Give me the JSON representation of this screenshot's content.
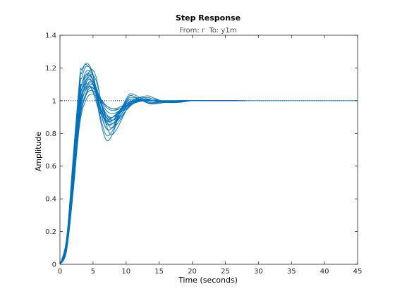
{
  "chart_data": {
    "type": "line",
    "title": "Step Response",
    "subtitle": "From: r  To: y1m",
    "xlabel": "Time (seconds)",
    "ylabel": "Amplitude",
    "xlim": [
      0,
      45
    ],
    "ylim": [
      0,
      1.4
    ],
    "xticks": [
      "0",
      "5",
      "10",
      "15",
      "20",
      "25",
      "30",
      "35",
      "40",
      "45"
    ],
    "yticks": [
      "0",
      "0.2",
      "0.4",
      "0.6",
      "0.8",
      "1",
      "1.2",
      "1.4"
    ],
    "xtick_values": [
      0,
      5,
      10,
      15,
      20,
      25,
      30,
      35,
      40,
      45
    ],
    "ytick_values": [
      0,
      0.2,
      0.4,
      0.6,
      0.8,
      1,
      1.2,
      1.4
    ],
    "reference_line": {
      "y": 1,
      "style": "dotted",
      "color": "#000000"
    },
    "grid": false,
    "legend": "none",
    "series_color": "#0072bd",
    "series": [
      {
        "x": [
          0,
          1,
          2,
          3,
          3.3,
          4,
          5,
          6,
          7,
          8,
          9,
          10.3,
          11,
          12,
          13,
          14,
          16,
          18,
          20,
          22,
          24,
          25
        ],
        "y": [
          0,
          0.1,
          0.52,
          1.0,
          1.07,
          1.15,
          1.13,
          1.0,
          0.9,
          0.88,
          0.93,
          0.99,
          1.0,
          1.0,
          0.995,
          0.99,
          0.995,
          1.0,
          1.0,
          1.0,
          1.0,
          1.0
        ]
      },
      {
        "x": [
          0,
          1,
          2,
          3,
          3.3,
          4,
          5,
          6,
          7,
          8,
          9,
          10.3,
          11,
          12,
          13,
          14,
          16,
          18,
          20,
          22,
          24,
          25
        ],
        "y": [
          0,
          0.12,
          0.56,
          1.05,
          1.1,
          1.18,
          1.15,
          0.98,
          0.87,
          0.86,
          0.92,
          1.0,
          1.01,
          1.005,
          0.995,
          0.99,
          0.995,
          1.0,
          1.0,
          1.0,
          1.0,
          1.0
        ]
      },
      {
        "x": [
          0,
          1,
          2,
          3,
          3.3,
          4,
          5,
          6,
          7,
          8,
          9,
          10.3,
          11,
          12,
          13,
          14,
          16,
          18,
          20,
          22,
          24,
          25
        ],
        "y": [
          0,
          0.14,
          0.6,
          1.08,
          1.14,
          1.21,
          1.16,
          0.95,
          0.83,
          0.84,
          0.92,
          1.01,
          1.02,
          1.01,
          0.99,
          0.985,
          0.995,
          1.0,
          1.0,
          1.0,
          1.0,
          1.0
        ]
      },
      {
        "x": [
          0,
          1,
          2,
          3,
          3.3,
          4,
          5,
          6,
          7,
          8,
          9,
          10.3,
          11,
          12,
          13,
          14,
          16,
          18,
          20,
          22,
          24,
          25
        ],
        "y": [
          0,
          0.15,
          0.63,
          1.12,
          1.17,
          1.23,
          1.16,
          0.92,
          0.79,
          0.82,
          0.92,
          1.02,
          1.03,
          1.01,
          0.99,
          0.98,
          0.99,
          1.0,
          1.0,
          1.0,
          1.0,
          1.0
        ]
      },
      {
        "x": [
          0,
          1,
          2,
          3,
          3.3,
          4,
          5,
          6,
          7,
          8,
          9,
          10.3,
          11,
          12,
          13,
          14,
          16,
          18,
          20,
          22,
          24,
          25
        ],
        "y": [
          0,
          0.16,
          0.66,
          1.15,
          1.19,
          1.22,
          1.15,
          0.9,
          0.76,
          0.8,
          0.92,
          1.03,
          1.04,
          1.02,
          0.99,
          0.98,
          0.99,
          1.0,
          1.0,
          1.0,
          1.0,
          1.0
        ]
      },
      {
        "x": [
          0,
          1,
          2,
          3,
          4,
          4.7,
          5.5,
          6.5,
          7.5,
          8.5,
          10,
          11,
          12,
          13.3,
          14,
          16,
          18,
          20,
          22,
          24,
          26,
          27
        ],
        "y": [
          0,
          0.08,
          0.44,
          0.88,
          1.04,
          1.08,
          1.05,
          0.95,
          0.9,
          0.91,
          0.96,
          0.98,
          0.995,
          1.0,
          1.0,
          0.995,
          0.995,
          1.0,
          1.0,
          1.0,
          1.0,
          1.0
        ]
      },
      {
        "x": [
          0,
          1,
          2,
          3,
          4,
          4.7,
          5.5,
          6.5,
          7.5,
          8.5,
          10,
          11,
          12,
          13.3,
          14,
          16,
          18,
          20,
          22,
          24,
          26,
          27
        ],
        "y": [
          0,
          0.09,
          0.47,
          0.92,
          1.08,
          1.12,
          1.08,
          0.95,
          0.87,
          0.87,
          0.94,
          0.98,
          1.0,
          1.01,
          1.01,
          0.995,
          0.99,
          1.0,
          1.0,
          1.0,
          1.0,
          1.0
        ]
      },
      {
        "x": [
          0,
          1,
          2,
          3,
          4,
          4.7,
          5.5,
          6.5,
          7.5,
          8.5,
          10,
          11,
          12,
          13.3,
          14,
          16,
          18,
          20,
          22,
          24,
          26,
          27
        ],
        "y": [
          0,
          0.1,
          0.5,
          0.95,
          1.11,
          1.16,
          1.12,
          0.95,
          0.84,
          0.85,
          0.94,
          0.99,
          1.01,
          1.02,
          1.01,
          0.99,
          0.99,
          1.0,
          1.0,
          1.0,
          1.0,
          1.0
        ]
      },
      {
        "x": [
          0,
          1,
          2,
          3,
          4,
          4.7,
          5.5,
          6.5,
          7.5,
          8.5,
          10,
          11,
          12,
          13.3,
          14,
          16,
          18,
          20,
          22,
          24,
          26,
          27
        ],
        "y": [
          0,
          0.11,
          0.53,
          0.98,
          1.13,
          1.19,
          1.14,
          0.93,
          0.8,
          0.82,
          0.94,
          1.0,
          1.02,
          1.03,
          1.02,
          0.99,
          0.99,
          1.0,
          1.0,
          1.0,
          1.0,
          1.0
        ]
      },
      {
        "x": [
          0,
          1,
          2,
          3,
          3.6,
          4.3,
          5,
          6,
          7,
          8,
          9.5,
          10.5,
          11.5,
          12.5,
          14,
          16,
          18,
          20,
          22,
          24,
          26,
          27
        ],
        "y": [
          0,
          0.12,
          0.55,
          1.0,
          1.1,
          1.14,
          1.1,
          0.96,
          0.86,
          0.86,
          0.93,
          0.98,
          1.0,
          1.01,
          1.0,
          0.99,
          0.995,
          1.0,
          1.0,
          1.0,
          1.0,
          1.0
        ]
      },
      {
        "x": [
          0,
          1,
          2,
          3,
          3.6,
          4.3,
          5,
          6,
          7,
          8,
          9.5,
          10.5,
          11.5,
          12.5,
          14,
          16,
          18,
          20,
          22,
          24,
          26,
          27
        ],
        "y": [
          0,
          0.13,
          0.58,
          1.03,
          1.13,
          1.17,
          1.12,
          0.95,
          0.83,
          0.84,
          0.93,
          0.99,
          1.01,
          1.02,
          1.0,
          0.99,
          0.995,
          1.0,
          1.0,
          1.0,
          1.0,
          1.0
        ]
      },
      {
        "x": [
          0,
          1,
          2,
          3,
          3.6,
          4.3,
          5,
          6,
          7,
          8,
          9.5,
          10.5,
          11.5,
          12.5,
          14,
          16,
          18,
          20,
          22,
          24,
          26,
          27
        ],
        "y": [
          0,
          0.13,
          0.57,
          1.01,
          1.09,
          1.1,
          1.05,
          0.93,
          0.88,
          0.9,
          0.96,
          0.99,
          1.0,
          1.0,
          1.0,
          0.995,
          1.0,
          1.0,
          1.0,
          1.0,
          1.0,
          1.0
        ]
      },
      {
        "x": [
          0,
          1,
          2,
          3,
          3.6,
          4.3,
          5,
          6,
          7,
          8,
          9.5,
          10.5,
          11.5,
          12.5,
          14,
          16,
          18,
          20,
          22,
          24,
          26,
          27
        ],
        "y": [
          0,
          0.12,
          0.54,
          0.97,
          1.06,
          1.09,
          1.06,
          0.96,
          0.9,
          0.9,
          0.95,
          0.98,
          0.995,
          1.0,
          1.0,
          0.995,
          1.0,
          1.0,
          1.0,
          1.0,
          1.0,
          1.0
        ]
      },
      {
        "x": [
          0,
          1,
          2,
          3,
          3.6,
          4.3,
          5,
          6,
          7,
          8,
          9.5,
          10.5,
          11.5,
          12.5,
          14,
          16,
          18,
          20,
          22,
          24,
          26,
          27
        ],
        "y": [
          0,
          0.11,
          0.52,
          0.96,
          1.07,
          1.13,
          1.1,
          0.97,
          0.88,
          0.88,
          0.94,
          0.98,
          1.0,
          1.005,
          1.0,
          0.99,
          0.995,
          1.0,
          1.0,
          1.0,
          1.0,
          1.0
        ]
      },
      {
        "x": [
          0,
          1,
          2,
          3,
          4,
          4.7,
          5.5,
          6.5,
          7.5,
          8.5,
          10,
          11,
          12,
          13.3,
          14,
          16,
          18,
          20,
          22,
          24,
          26,
          27
        ],
        "y": [
          0,
          0.09,
          0.46,
          0.9,
          1.05,
          1.1,
          1.07,
          0.96,
          0.89,
          0.89,
          0.95,
          0.98,
          0.995,
          1.005,
          1.0,
          0.995,
          0.995,
          1.0,
          1.0,
          1.0,
          1.0,
          1.0
        ]
      },
      {
        "x": [
          0,
          1,
          2,
          3,
          3.3,
          4,
          5,
          6,
          7,
          8,
          9,
          10.3,
          11,
          12,
          13,
          14,
          16,
          18,
          20,
          22,
          24,
          25
        ],
        "y": [
          0,
          0.13,
          0.58,
          1.04,
          1.1,
          1.16,
          1.12,
          0.97,
          0.88,
          0.88,
          0.94,
          1.0,
          1.01,
          1.0,
          0.995,
          0.99,
          0.995,
          1.0,
          1.0,
          1.0,
          1.0,
          1.0
        ]
      },
      {
        "x": [
          0,
          1,
          2,
          3,
          4,
          5,
          6,
          7,
          8,
          9,
          10,
          11,
          12,
          13,
          14,
          15,
          17,
          19,
          21,
          23,
          25,
          28
        ],
        "y": [
          0,
          0.1,
          0.5,
          0.94,
          1.07,
          1.08,
          1.02,
          0.96,
          0.94,
          0.95,
          0.97,
          0.99,
          0.995,
          1.0,
          1.0,
          1.0,
          0.995,
          1.0,
          1.0,
          1.0,
          1.0,
          1.0
        ]
      },
      {
        "x": [
          0,
          1,
          2,
          3,
          4,
          5,
          6,
          7,
          8,
          9,
          10,
          11,
          12,
          13,
          14,
          15,
          17,
          19,
          21,
          23,
          25,
          28
        ],
        "y": [
          0,
          0.1,
          0.48,
          0.9,
          1.04,
          1.06,
          1.02,
          0.97,
          0.95,
          0.96,
          0.98,
          0.99,
          1.0,
          1.0,
          1.0,
          1.0,
          1.0,
          1.0,
          1.0,
          1.0,
          1.0,
          1.0
        ]
      },
      {
        "x": [
          0,
          1,
          2,
          3,
          4,
          5,
          6,
          7,
          8,
          9,
          10,
          11,
          12,
          13,
          14,
          15,
          17,
          19,
          21,
          23,
          25,
          28
        ],
        "y": [
          0,
          0.09,
          0.45,
          0.86,
          1.01,
          1.04,
          1.01,
          0.97,
          0.95,
          0.95,
          0.97,
          0.985,
          0.995,
          1.0,
          1.0,
          1.0,
          1.0,
          1.0,
          1.0,
          1.0,
          1.0,
          1.0
        ]
      },
      {
        "x": [
          0,
          1,
          2,
          3,
          4,
          5,
          6,
          7,
          8,
          9,
          10,
          11,
          12,
          13,
          14,
          15,
          16,
          18,
          20,
          22,
          25,
          45
        ],
        "y": [
          0,
          0.11,
          0.52,
          0.96,
          1.09,
          1.1,
          1.02,
          0.94,
          0.92,
          0.94,
          0.97,
          0.99,
          1.0,
          1.0,
          1.0,
          1.0,
          0.995,
          1.0,
          1.0,
          1.0,
          1.0,
          1.0
        ]
      }
    ]
  }
}
